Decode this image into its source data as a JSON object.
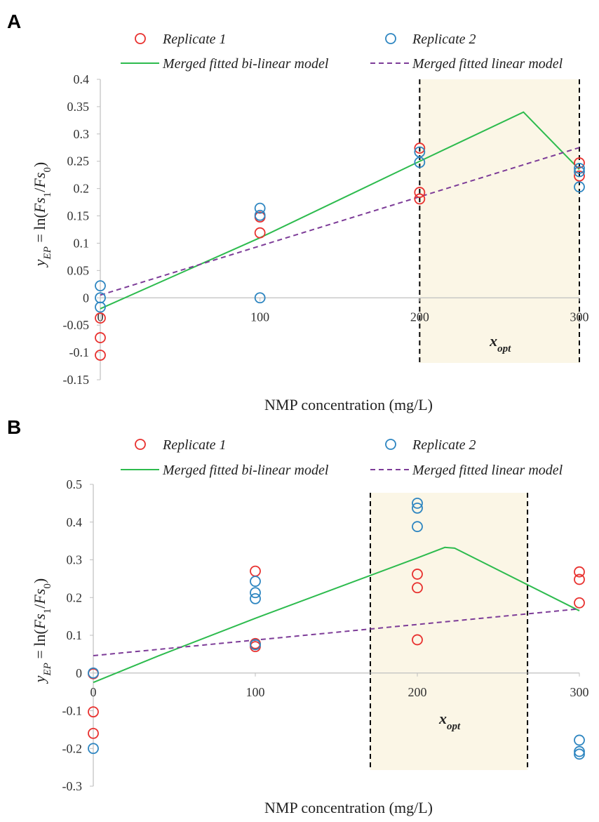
{
  "legend": {
    "rep1": "Replicate 1",
    "rep2": "Replicate 2",
    "bilinear": "Merged fitted bi-linear model",
    "linear": "Merged fitted linear model"
  },
  "colors": {
    "rep1": "#e8312f",
    "rep2": "#2e86c1",
    "bilinear": "#2dbb4e",
    "linear": "#7d3c98",
    "region": "#fbf6e6"
  },
  "chart_data": [
    {
      "type": "scatter",
      "panel": "A",
      "xlabel": "NMP concentration (mg/L)",
      "ylabel": "y_EP = ln(Fs1/Fs0)",
      "xlim": [
        0,
        300
      ],
      "ylim": [
        -0.15,
        0.4
      ],
      "xticks": [
        0,
        100,
        200,
        300
      ],
      "yticks": [
        -0.15,
        -0.1,
        -0.05,
        0,
        0.05,
        0.1,
        0.15,
        0.2,
        0.25,
        0.3,
        0.35,
        0.4
      ],
      "xtick_labels": [
        "0",
        "100",
        "200",
        "300"
      ],
      "ytick_labels": [
        "-0.15",
        "-0.1",
        "-0.05",
        "0",
        "0.05",
        "0.1",
        "0.15",
        "0.2",
        "0.25",
        "0.3",
        "0.35",
        "0.4"
      ],
      "region": {
        "x0": 200,
        "x1": 300,
        "label": "x_opt"
      },
      "series": [
        {
          "name": "Replicate 1",
          "kind": "points",
          "x": [
            0,
            0,
            0,
            100,
            100,
            200,
            200,
            200,
            300,
            300
          ],
          "y": [
            -0.037,
            -0.073,
            -0.105,
            0.148,
            0.119,
            0.274,
            0.193,
            0.181,
            0.247,
            0.223
          ]
        },
        {
          "name": "Replicate 2",
          "kind": "points",
          "x": [
            0,
            0,
            0,
            100,
            100,
            100,
            200,
            200,
            300,
            300,
            300
          ],
          "y": [
            0.022,
            0.0,
            -0.017,
            0.164,
            0.151,
            0.0,
            0.267,
            0.248,
            0.237,
            0.231,
            0.203
          ]
        },
        {
          "name": "Merged fitted bi-linear model",
          "kind": "line",
          "x": [
            0,
            50,
            100,
            200,
            265,
            300
          ],
          "y": [
            -0.02,
            0.045,
            0.11,
            0.25,
            0.34,
            0.235
          ]
        },
        {
          "name": "Merged fitted linear model",
          "kind": "dashed",
          "x": [
            0,
            300
          ],
          "y": [
            0.005,
            0.275
          ]
        }
      ]
    },
    {
      "type": "scatter",
      "panel": "B",
      "xlabel": "NMP concentration (mg/L)",
      "ylabel": "y_EP = ln(Fs1/Fs0)",
      "xlim": [
        0,
        300
      ],
      "ylim": [
        -0.3,
        0.5
      ],
      "xticks": [
        0,
        100,
        200,
        300
      ],
      "yticks": [
        -0.3,
        -0.2,
        -0.1,
        0,
        0.1,
        0.2,
        0.3,
        0.4,
        0.5
      ],
      "xtick_labels": [
        "0",
        "100",
        "200",
        "300"
      ],
      "ytick_labels": [
        "-0.3",
        "-0.2",
        "-0.1",
        "0",
        "0.1",
        "0.2",
        "0.3",
        "0.4",
        "0.5"
      ],
      "region": {
        "x0": 171,
        "x1": 268,
        "label": "x_opt"
      },
      "series": [
        {
          "name": "Replicate 1",
          "kind": "points",
          "x": [
            0,
            0,
            0,
            100,
            100,
            100,
            200,
            200,
            200,
            300,
            300,
            300
          ],
          "y": [
            -0.002,
            -0.103,
            -0.16,
            0.27,
            0.078,
            0.07,
            0.262,
            0.226,
            0.088,
            0.268,
            0.248,
            0.186
          ]
        },
        {
          "name": "Replicate 2",
          "kind": "points",
          "x": [
            0,
            0,
            100,
            100,
            100,
            100,
            200,
            200,
            200,
            300,
            300,
            300
          ],
          "y": [
            0.0,
            -0.2,
            0.243,
            0.213,
            0.197,
            0.075,
            0.45,
            0.437,
            0.388,
            -0.178,
            -0.208,
            -0.215
          ]
        },
        {
          "name": "Merged fitted bi-linear model",
          "kind": "line",
          "x": [
            0,
            40,
            100,
            200,
            217,
            223,
            300
          ],
          "y": [
            -0.025,
            0.045,
            0.145,
            0.305,
            0.333,
            0.331,
            0.165
          ]
        },
        {
          "name": "Merged fitted linear model",
          "kind": "dashed",
          "x": [
            0,
            300
          ],
          "y": [
            0.046,
            0.17
          ]
        }
      ]
    }
  ],
  "panel_labels": [
    "A",
    "B"
  ],
  "xopt": {
    "main": "x",
    "sub": "opt"
  },
  "ylabel_parts": {
    "y": "y",
    "ysub": "EP",
    "eq": " = ln(",
    "fs1": "Fs",
    "sub1": "1",
    "slash": "/",
    "fs0": "Fs",
    "sub0": "0",
    "close": ")"
  }
}
